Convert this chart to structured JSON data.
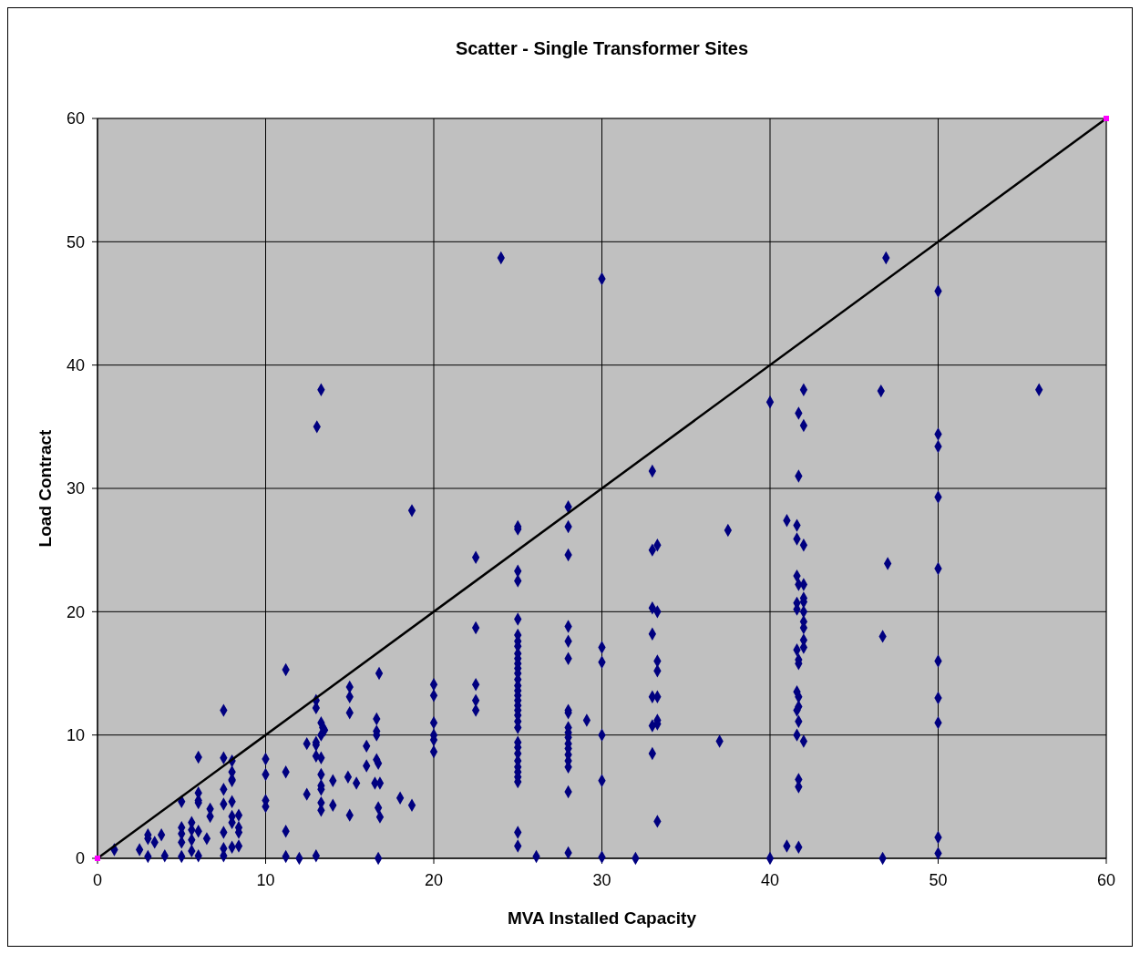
{
  "chart_data": {
    "type": "scatter",
    "title": "Scatter - Single Transformer Sites",
    "xlabel": "MVA Installed Capacity",
    "ylabel": "Load Contract",
    "xlim": [
      0,
      60
    ],
    "ylim": [
      0,
      60
    ],
    "xticks": [
      0,
      10,
      20,
      30,
      40,
      50,
      60
    ],
    "yticks": [
      0,
      10,
      20,
      30,
      40,
      50,
      60
    ],
    "grid": true,
    "series": [
      {
        "type": "scatter",
        "marker": "diamond",
        "color": "#000080",
        "x": [
          1.0,
          2.5,
          3.0,
          3.0,
          3.4,
          3.8,
          3.0,
          4.0,
          5,
          5,
          5,
          5,
          5,
          6.0,
          6,
          6,
          6,
          5.6,
          5.6,
          5.6,
          5.6,
          6.0,
          6.0,
          6.5,
          6.7,
          6.7,
          7.5,
          7.5,
          7.5,
          7.5,
          7.5,
          7.5,
          7.5,
          8,
          8,
          8,
          8,
          8,
          8,
          8,
          8.4,
          8.4,
          8.4,
          8,
          8.4,
          10,
          10,
          10,
          10,
          11.2,
          11.2,
          11.2,
          11.2,
          12,
          12.45,
          12.45,
          13,
          13,
          13,
          13,
          13.3,
          13.4,
          13.5,
          13.3,
          13,
          13.3,
          13.3,
          13.3,
          13.3,
          13.3,
          13.3,
          13,
          13.3,
          13.05,
          14,
          14,
          14.9,
          15.4,
          15,
          15,
          15,
          15,
          16,
          16,
          16.6,
          16.6,
          16.6,
          16.6,
          16.7,
          16.5,
          16.8,
          16.7,
          16.8,
          16.7,
          16.75,
          18.0,
          18.7,
          18.7,
          20,
          20,
          20,
          20,
          20,
          20,
          22.5,
          22.5,
          22.5,
          22.5,
          22.5,
          24,
          25,
          25,
          25,
          25,
          25,
          25,
          25,
          25,
          25,
          25,
          25,
          25,
          25,
          25,
          25,
          25,
          25,
          25,
          25,
          25,
          25,
          25,
          25,
          25,
          25,
          25,
          25,
          25,
          25,
          25,
          25,
          25,
          25,
          26.1,
          28,
          28,
          28,
          28,
          28,
          28,
          28,
          28,
          28,
          28,
          28,
          28,
          28,
          28,
          28,
          28,
          28,
          28,
          29.1,
          30,
          30,
          30,
          30,
          30,
          30,
          32,
          33,
          33,
          33,
          33,
          33,
          33,
          33,
          33.3,
          33.3,
          33.3,
          33.3,
          33.3,
          33.3,
          33.3,
          33.3,
          37.5,
          37,
          40,
          40,
          41.0,
          41.0,
          41.7,
          41.7,
          41.6,
          41.6,
          41.6,
          41.7,
          41.6,
          41.6,
          41.6,
          41.7,
          41.7,
          41.6,
          41.7,
          41.7,
          41.6,
          41.7,
          41.6,
          41.7,
          41.7,
          41.7,
          42,
          42,
          42,
          42,
          42,
          42,
          42,
          42,
          42,
          42,
          42,
          42,
          46.6,
          46.9,
          47.0,
          46.7,
          46.7,
          50,
          50,
          50,
          50,
          50,
          50,
          50,
          50,
          50,
          50,
          56
        ],
        "values": [
          0.7,
          0.7,
          1.9,
          1.6,
          1.3,
          1.9,
          0.15,
          0.2,
          4.6,
          2.5,
          2.0,
          1.3,
          0.15,
          8.2,
          5.3,
          4.7,
          4.5,
          2.9,
          2.3,
          1.5,
          0.6,
          2.2,
          0.2,
          1.6,
          4.0,
          3.4,
          12,
          8.15,
          5.6,
          4.4,
          2.1,
          0.8,
          0.2,
          7.9,
          7.0,
          6.4,
          6.3,
          4.6,
          3.4,
          2.9,
          3.5,
          2.5,
          2.1,
          0.9,
          1.0,
          8.05,
          6.8,
          4.7,
          4.2,
          15.3,
          7.0,
          2.2,
          0.15,
          0,
          9.3,
          5.2,
          12.8,
          12.2,
          9.4,
          9.2,
          11.0,
          10.6,
          10.4,
          10.0,
          8.3,
          8.15,
          6.8,
          5.9,
          5.6,
          4.5,
          3.9,
          0.2,
          38.0,
          35.0,
          6.3,
          4.3,
          6.6,
          6.1,
          13.9,
          13.1,
          11.8,
          3.5,
          9.1,
          7.5,
          11.3,
          10.3,
          10.0,
          8.0,
          7.7,
          6.1,
          6.1,
          4.1,
          3.35,
          0,
          15.0,
          4.9,
          4.3,
          28.2,
          14.1,
          13.2,
          11.0,
          10.0,
          9.6,
          8.65,
          24.4,
          18.7,
          14.1,
          12.8,
          12.0,
          48.7,
          26.9,
          26.7,
          23.3,
          22.5,
          19.4,
          18.1,
          17.6,
          17.2,
          16.6,
          16.2,
          15.8,
          15.4,
          15.0,
          14.5,
          14.0,
          13.6,
          13.2,
          12.8,
          12.4,
          12.0,
          11.6,
          11.1,
          10.6,
          9.4,
          9.0,
          8.5,
          7.9,
          7.4,
          7.0,
          6.6,
          6.2,
          2.1,
          1.0,
          0.15,
          28.5,
          26.9,
          24.6,
          18.8,
          17.6,
          16.2,
          12.0,
          10.6,
          10.2,
          9.8,
          9.3,
          8.9,
          8.4,
          7.9,
          7.4,
          5.4,
          0.45,
          11.8,
          11.2,
          47.0,
          17.1,
          15.9,
          10.0,
          6.3,
          0.1,
          0,
          31.4,
          25.0,
          20.3,
          18.2,
          13.1,
          10.75,
          8.5,
          25.4,
          20.0,
          16.0,
          15.2,
          13.1,
          11.2,
          10.9,
          3.0,
          26.6,
          9.5,
          37.0,
          0,
          27.4,
          1.0,
          36.1,
          31.0,
          27.0,
          25.9,
          22.9,
          22.2,
          20.7,
          20.2,
          16.9,
          16.1,
          15.8,
          13.5,
          13.1,
          12.3,
          12.0,
          11.1,
          10.0,
          6.4,
          5.8,
          0.9,
          38.0,
          35.1,
          25.4,
          22.2,
          21.1,
          20.8,
          20.0,
          19.2,
          18.7,
          17.7,
          17.1,
          9.5,
          37.9,
          48.7,
          23.9,
          18.0,
          0,
          46.0,
          34.4,
          33.4,
          29.3,
          23.5,
          16.0,
          13.0,
          11.0,
          1.7,
          0.4,
          38.0
        ]
      },
      {
        "type": "line",
        "marker": "none",
        "color": "#000000",
        "x": [
          0,
          60
        ],
        "values": [
          0,
          60
        ]
      },
      {
        "type": "scatter",
        "marker": "square",
        "color": "#ff00ff",
        "x": [
          0,
          60
        ],
        "values": [
          0,
          60
        ]
      }
    ]
  }
}
